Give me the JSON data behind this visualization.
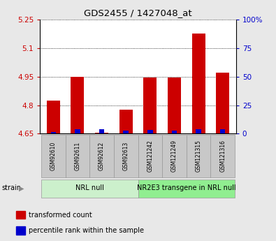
{
  "title": "GDS2455 / 1427048_at",
  "samples": [
    "GSM92610",
    "GSM92611",
    "GSM92612",
    "GSM92613",
    "GSM121242",
    "GSM121249",
    "GSM121315",
    "GSM121316"
  ],
  "red_values": [
    4.825,
    4.95,
    4.655,
    4.775,
    4.945,
    4.945,
    5.175,
    4.97
  ],
  "blue_values": [
    4.66,
    4.675,
    4.672,
    4.665,
    4.67,
    4.668,
    4.675,
    4.672
  ],
  "baseline": 4.65,
  "ylim_left": [
    4.65,
    5.25
  ],
  "ylim_right": [
    0,
    100
  ],
  "yticks_left": [
    4.65,
    4.8,
    4.95,
    5.1,
    5.25
  ],
  "yticks_right": [
    0,
    25,
    50,
    75,
    100
  ],
  "ytick_labels_right": [
    "0",
    "25",
    "50",
    "75",
    "100%"
  ],
  "groups": [
    {
      "label": "NRL null",
      "start": 0,
      "end": 3,
      "color": "#ccf0cc"
    },
    {
      "label": "NR2E3 transgene in NRL null",
      "start": 4,
      "end": 7,
      "color": "#90ee90"
    }
  ],
  "bar_color_red": "#cc0000",
  "bar_color_blue": "#0000cc",
  "bar_width": 0.55,
  "blue_bar_width": 0.22,
  "bg_color": "#e8e8e8",
  "plot_bg_color": "#ffffff",
  "sample_box_color": "#c8c8c8",
  "legend_items": [
    {
      "label": "transformed count",
      "color": "#cc0000"
    },
    {
      "label": "percentile rank within the sample",
      "color": "#0000cc"
    }
  ],
  "strain_label": "strain",
  "left_axis_color": "#cc0000",
  "right_axis_color": "#0000cc",
  "grid_color": "black",
  "title_fontsize": 9.5,
  "tick_fontsize": 7.5,
  "sample_fontsize": 5.5,
  "group_fontsize": 7,
  "legend_fontsize": 7
}
